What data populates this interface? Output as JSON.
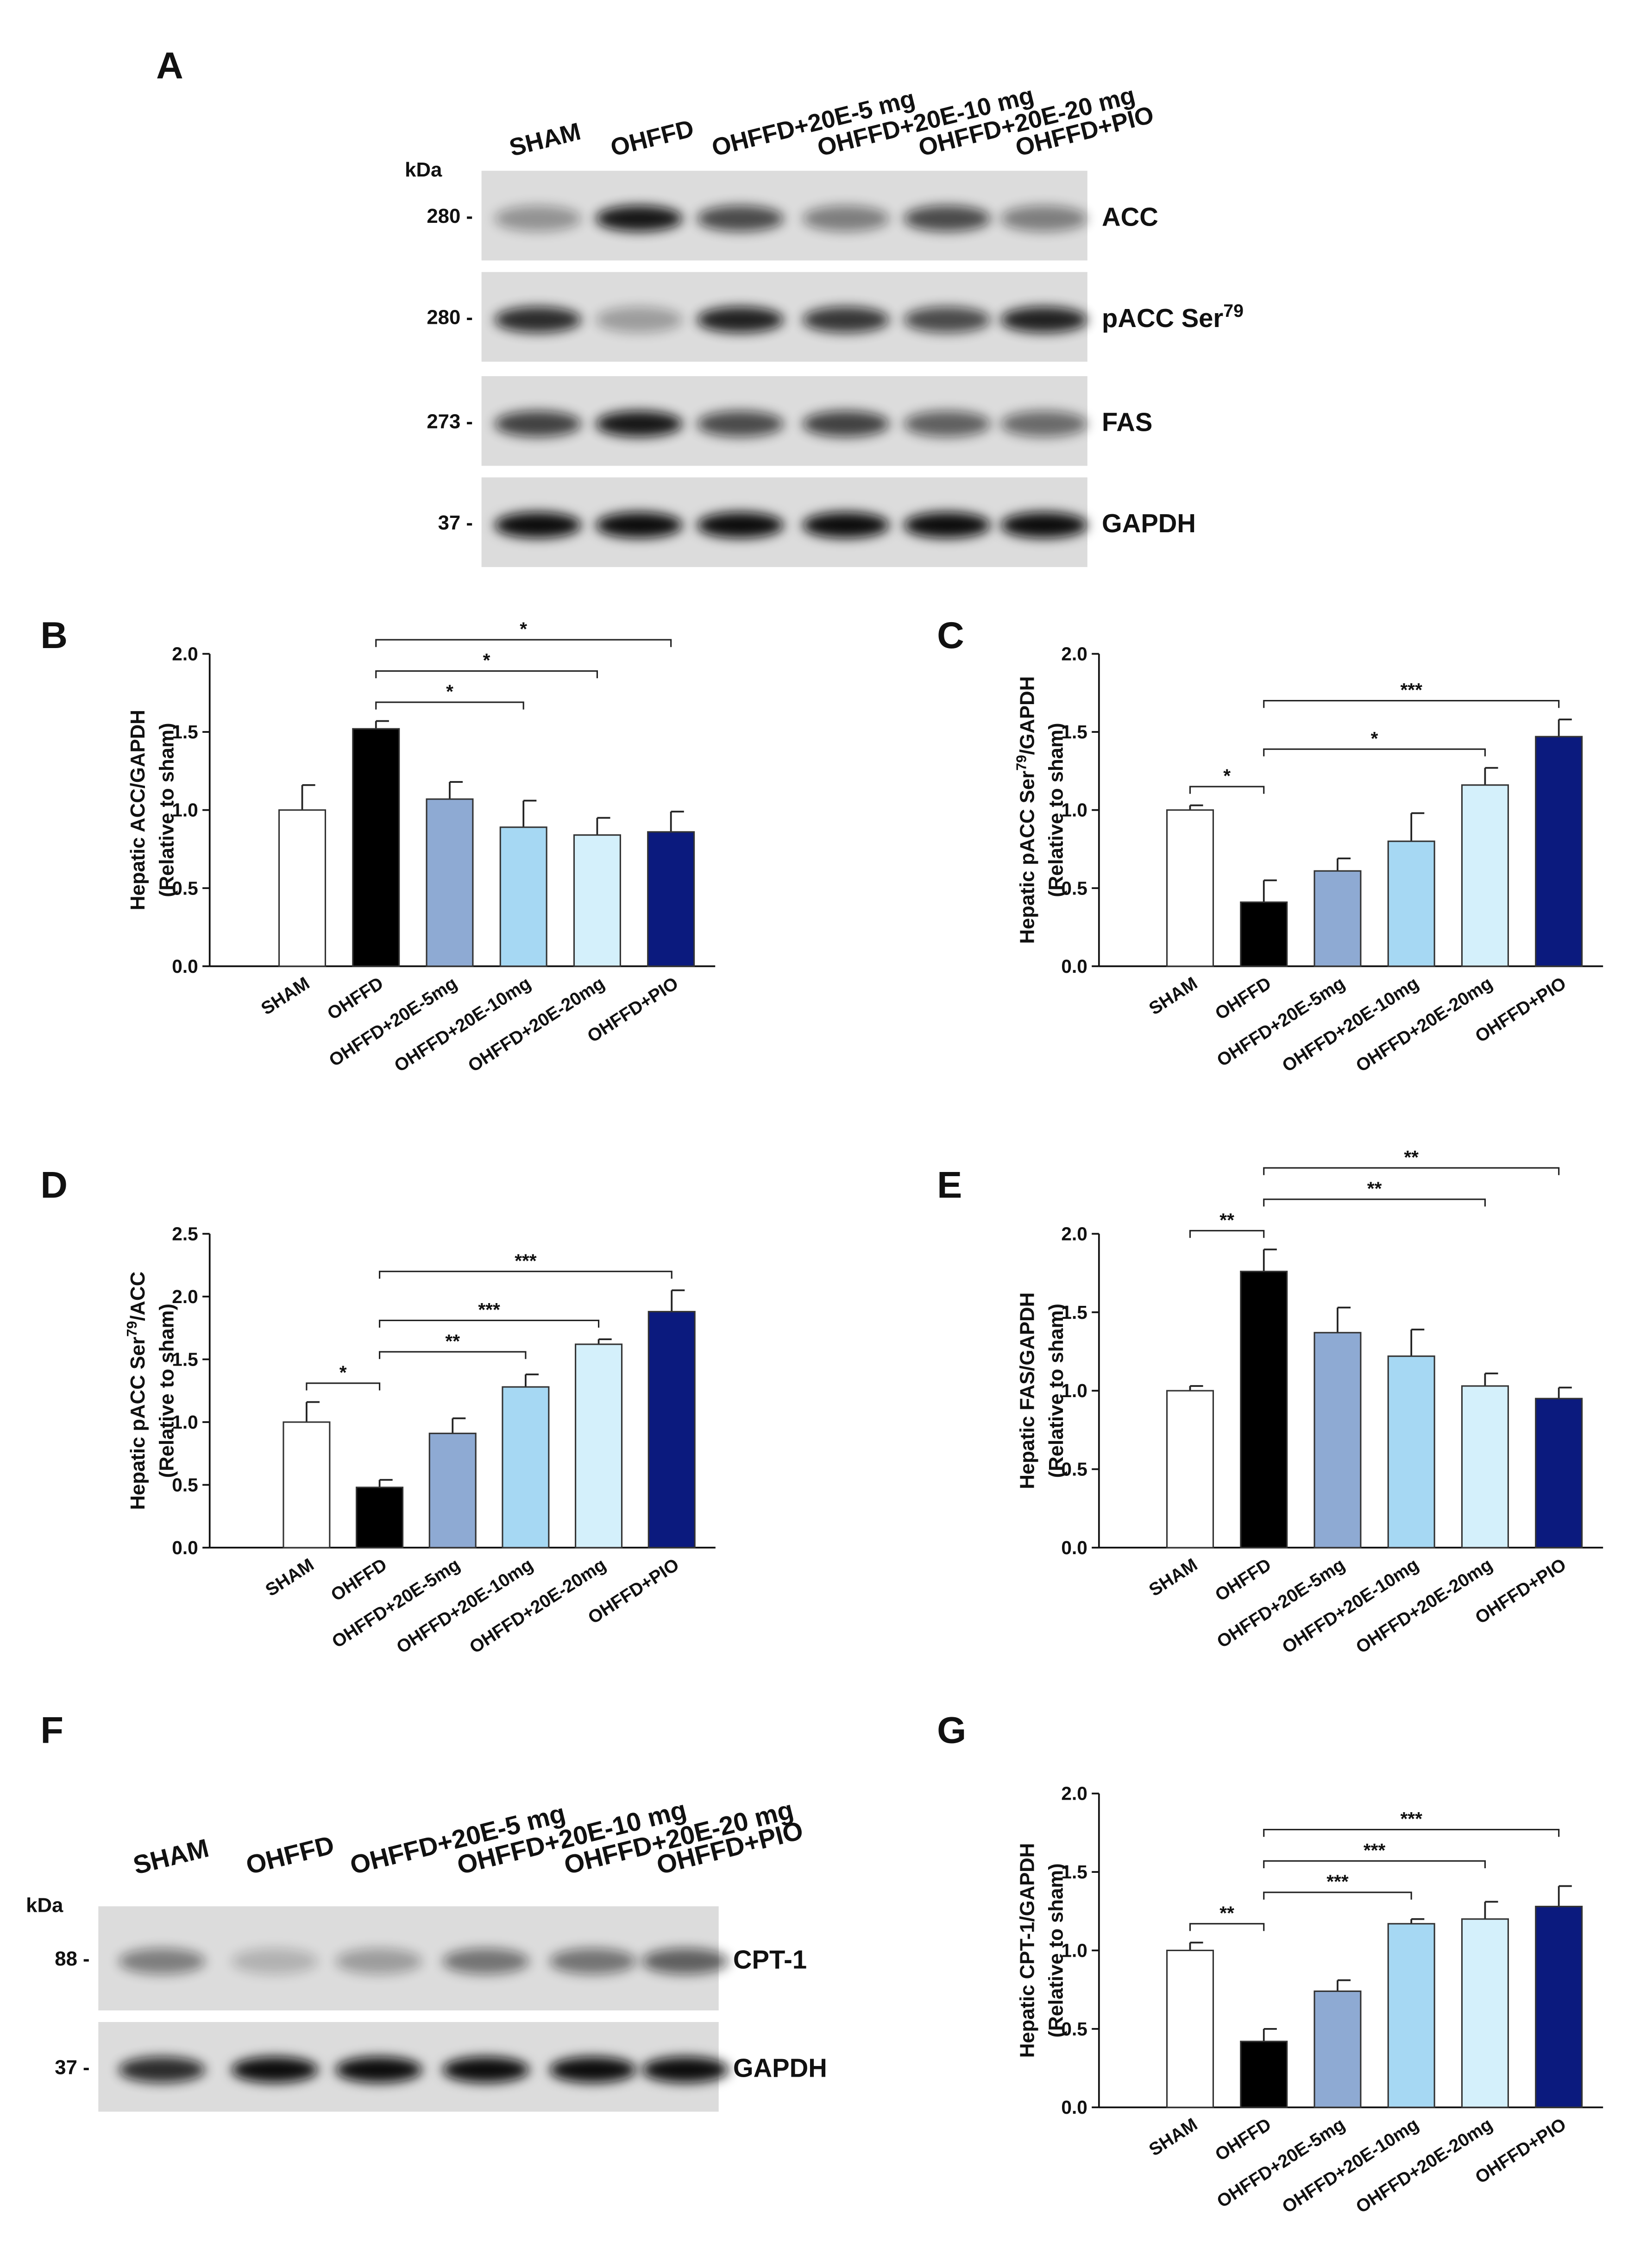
{
  "chart_data": [
    {
      "type": "bar",
      "label": "B",
      "ylabel": [
        "Hepatic ACC/GAPDH"
      ],
      "ylabel2": "(Relative to sham)",
      "categories": [
        "SHAM",
        "OHFFD",
        "OHFFD+20E-5mg",
        "OHFFD+20E-10mg",
        "OHFFD+20E-20mg",
        "OHFFD+PIO"
      ],
      "values": [
        1.0,
        1.52,
        1.07,
        0.89,
        0.84,
        0.86
      ],
      "errors": [
        0.16,
        0.05,
        0.11,
        0.17,
        0.11,
        0.13
      ],
      "colors": [
        "#ffffff",
        "#000000",
        "#8eaad3",
        "#a6d8f3",
        "#d4f0fb",
        "#0b1a7e"
      ],
      "ylim": [
        0,
        2
      ],
      "yticks": [
        {
          "value": 0,
          "label": "0.0"
        },
        {
          "value": 0.5,
          "label": "0.5"
        },
        {
          "value": 1,
          "label": "1.0"
        },
        {
          "value": 1.5,
          "label": "1.5"
        },
        {
          "value": 2,
          "label": "2.0"
        }
      ],
      "annotations": [
        {
          "from": 1,
          "to": 3,
          "text": "*"
        },
        {
          "from": 1,
          "to": 4,
          "text": "*"
        },
        {
          "from": 1,
          "to": 5,
          "text": "*"
        }
      ]
    },
    {
      "type": "bar",
      "label": "C",
      "ylabel": [
        "Hepatic pACC Ser",
        "79",
        "/GAPDH"
      ],
      "ylabel2": "(Relative to sham)",
      "categories": [
        "SHAM",
        "OHFFD",
        "OHFFD+20E-5mg",
        "OHFFD+20E-10mg",
        "OHFFD+20E-20mg",
        "OHFFD+PIO"
      ],
      "values": [
        1.0,
        0.41,
        0.61,
        0.8,
        1.16,
        1.47
      ],
      "errors": [
        0.03,
        0.14,
        0.08,
        0.18,
        0.11,
        0.11
      ],
      "colors": [
        "#ffffff",
        "#000000",
        "#8eaad3",
        "#a6d8f3",
        "#d4f0fb",
        "#0b1a7e"
      ],
      "ylim": [
        0,
        2
      ],
      "yticks": [
        {
          "value": 0,
          "label": "0.0"
        },
        {
          "value": 0.5,
          "label": "0.5"
        },
        {
          "value": 1,
          "label": "1.0"
        },
        {
          "value": 1.5,
          "label": "1.5"
        },
        {
          "value": 2,
          "label": "2.0"
        }
      ],
      "annotations": [
        {
          "from": 0,
          "to": 1,
          "text": "*"
        },
        {
          "from": 1,
          "to": 4,
          "text": "*"
        },
        {
          "from": 1,
          "to": 5,
          "text": "***"
        }
      ]
    },
    {
      "type": "bar",
      "label": "D",
      "ylabel": [
        "Hepatic pACC Ser",
        "79",
        "/ACC"
      ],
      "ylabel2": "(Relative to sham)",
      "categories": [
        "SHAM",
        "OHFFD",
        "OHFFD+20E-5mg",
        "OHFFD+20E-10mg",
        "OHFFD+20E-20mg",
        "OHFFD+PIO"
      ],
      "values": [
        1.0,
        0.48,
        0.91,
        1.28,
        1.62,
        1.88
      ],
      "errors": [
        0.16,
        0.06,
        0.12,
        0.1,
        0.04,
        0.17
      ],
      "colors": [
        "#ffffff",
        "#000000",
        "#8eaad3",
        "#a6d8f3",
        "#d4f0fb",
        "#0b1a7e"
      ],
      "ylim": [
        0,
        2.5
      ],
      "yticks": [
        {
          "value": 0,
          "label": "0.0"
        },
        {
          "value": 0.5,
          "label": "0.5"
        },
        {
          "value": 1,
          "label": "1.0"
        },
        {
          "value": 1.5,
          "label": "1.5"
        },
        {
          "value": 2,
          "label": "2.0"
        },
        {
          "value": 2.5,
          "label": "2.5"
        }
      ],
      "annotations": [
        {
          "from": 0,
          "to": 1,
          "text": "*"
        },
        {
          "from": 1,
          "to": 3,
          "text": "**"
        },
        {
          "from": 1,
          "to": 4,
          "text": "***"
        },
        {
          "from": 1,
          "to": 5,
          "text": "***"
        }
      ]
    },
    {
      "type": "bar",
      "label": "E",
      "ylabel": [
        "Hepatic FAS/GAPDH"
      ],
      "ylabel2": "(Relative to sham)",
      "categories": [
        "SHAM",
        "OHFFD",
        "OHFFD+20E-5mg",
        "OHFFD+20E-10mg",
        "OHFFD+20E-20mg",
        "OHFFD+PIO"
      ],
      "values": [
        1.0,
        1.76,
        1.37,
        1.22,
        1.03,
        0.95
      ],
      "errors": [
        0.03,
        0.14,
        0.16,
        0.17,
        0.08,
        0.07
      ],
      "colors": [
        "#ffffff",
        "#000000",
        "#8eaad3",
        "#a6d8f3",
        "#d4f0fb",
        "#0b1a7e"
      ],
      "ylim": [
        0,
        2
      ],
      "yticks": [
        {
          "value": 0,
          "label": "0.0"
        },
        {
          "value": 0.5,
          "label": "0.5"
        },
        {
          "value": 1,
          "label": "1.0"
        },
        {
          "value": 1.5,
          "label": "1.5"
        },
        {
          "value": 2,
          "label": "2.0"
        }
      ],
      "annotations": [
        {
          "from": 0,
          "to": 1,
          "text": "**"
        },
        {
          "from": 1,
          "to": 4,
          "text": "**"
        },
        {
          "from": 1,
          "to": 5,
          "text": "**"
        }
      ]
    },
    {
      "type": "bar",
      "label": "G",
      "ylabel": [
        "Hepatic CPT-1/GAPDH"
      ],
      "ylabel2": "(Relative to sham)",
      "categories": [
        "SHAM",
        "OHFFD",
        "OHFFD+20E-5mg",
        "OHFFD+20E-10mg",
        "OHFFD+20E-20mg",
        "OHFFD+PIO"
      ],
      "values": [
        1.0,
        0.42,
        0.74,
        1.17,
        1.2,
        1.28
      ],
      "errors": [
        0.05,
        0.08,
        0.07,
        0.03,
        0.11,
        0.13
      ],
      "colors": [
        "#ffffff",
        "#000000",
        "#8eaad3",
        "#a6d8f3",
        "#d4f0fb",
        "#0b1a7e"
      ],
      "ylim": [
        0,
        2
      ],
      "yticks": [
        {
          "value": 0,
          "label": "0.0"
        },
        {
          "value": 0.5,
          "label": "0.5"
        },
        {
          "value": 1,
          "label": "1.0"
        },
        {
          "value": 1.5,
          "label": "1.5"
        },
        {
          "value": 2,
          "label": "2.0"
        }
      ],
      "annotations": [
        {
          "from": 0,
          "to": 1,
          "text": "**"
        },
        {
          "from": 1,
          "to": 3,
          "text": "***"
        },
        {
          "from": 1,
          "to": 4,
          "text": "***"
        },
        {
          "from": 1,
          "to": 5,
          "text": "***"
        }
      ]
    }
  ],
  "blots": [
    {
      "label": "A",
      "kda": "kDa",
      "lanes": [
        "SHAM",
        "OHFFD",
        "OHFFD+20E-5 mg",
        "OHFFD+20E-10 mg",
        "OHFFD+20E-20 mg",
        "OHFFD+PIO"
      ],
      "rows": [
        {
          "marker": "280 -",
          "protein": [
            "ACC"
          ]
        },
        {
          "marker": "280 -",
          "protein": [
            "pACC Ser",
            "79"
          ]
        },
        {
          "marker": "273 -",
          "protein": [
            "FAS"
          ]
        },
        {
          "marker": "37 -",
          "protein": [
            "GAPDH"
          ]
        }
      ]
    },
    {
      "label": "F",
      "kda": "kDa",
      "lanes": [
        "SHAM",
        "OHFFD",
        "OHFFD+20E-5 mg",
        "OHFFD+20E-10 mg",
        "OHFFD+20E-20 mg",
        "OHFFD+PIO"
      ],
      "rows": [
        {
          "marker": "88 -",
          "protein": [
            "CPT-1"
          ]
        },
        {
          "marker": "37 -",
          "protein": [
            "GAPDH"
          ]
        }
      ]
    }
  ]
}
